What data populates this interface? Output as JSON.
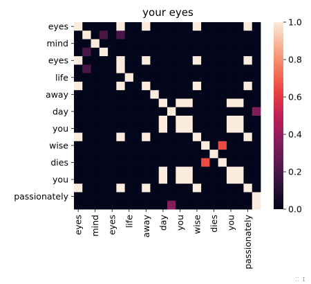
{
  "chart_data": {
    "type": "heatmap",
    "title": "your eyes",
    "xlabel": "",
    "ylabel": "",
    "row_labels": [
      "eyes",
      "",
      "mind",
      "",
      "eyes",
      "",
      "life",
      "",
      "away",
      "",
      "day",
      "",
      "you",
      "",
      "wise",
      "",
      "dies",
      "",
      "you",
      "",
      "passionately",
      ""
    ],
    "col_labels": [
      "eyes",
      "",
      "mind",
      "",
      "eyes",
      "",
      "life",
      "",
      "away",
      "",
      "day",
      "",
      "you",
      "",
      "wise",
      "",
      "dies",
      "",
      "you",
      "",
      "passionately",
      ""
    ],
    "values": [
      [
        1,
        0,
        0,
        0,
        0,
        1,
        0,
        0,
        1,
        0,
        0,
        0,
        0,
        0,
        1,
        0,
        0,
        0,
        0,
        0,
        1,
        0
      ],
      [
        0,
        1,
        0,
        0.2,
        0,
        0.2,
        0,
        0,
        0,
        0,
        0,
        0,
        0,
        0,
        0,
        0,
        0,
        0,
        0,
        0,
        0,
        0
      ],
      [
        0,
        0,
        1,
        0,
        0,
        0,
        0,
        0,
        0,
        0,
        0,
        0,
        0,
        0,
        0,
        0,
        0,
        0,
        0,
        0,
        0,
        0
      ],
      [
        0,
        0.2,
        0,
        1,
        0,
        0,
        0,
        0,
        0,
        0,
        0,
        0,
        0,
        0,
        0,
        0,
        0,
        0,
        0,
        0,
        0,
        0
      ],
      [
        1,
        0,
        0,
        0,
        0,
        1,
        0,
        0,
        1,
        0,
        0,
        0,
        0,
        0,
        1,
        0,
        0,
        0,
        0,
        0,
        1,
        0
      ],
      [
        0,
        0.2,
        0,
        0,
        0,
        1,
        0,
        0,
        0,
        0,
        0,
        0,
        0,
        0,
        0,
        0,
        0,
        0,
        0,
        0,
        0,
        0
      ],
      [
        0,
        0,
        0,
        0,
        0,
        0,
        1,
        0,
        0,
        0,
        0,
        0,
        0,
        0,
        0,
        0,
        0,
        0,
        0,
        0,
        0,
        0
      ],
      [
        1,
        0,
        0,
        0,
        0,
        1,
        0,
        0,
        1,
        0,
        0,
        0,
        0,
        0,
        1,
        0,
        0,
        0,
        0,
        0,
        1,
        0
      ],
      [
        0,
        0,
        0,
        0,
        0,
        0,
        0,
        0,
        0,
        1,
        0,
        0,
        0,
        0,
        0,
        0,
        0,
        0,
        0,
        0,
        0,
        0
      ],
      [
        0,
        0,
        0,
        0,
        0,
        0,
        0,
        0,
        0,
        0,
        1,
        0,
        1,
        1,
        0,
        0,
        0,
        0,
        1,
        1,
        0,
        0
      ],
      [
        0,
        0,
        0,
        0,
        0,
        0,
        0,
        0,
        0,
        0,
        0,
        1,
        0,
        0,
        0,
        0,
        0,
        0,
        0,
        0,
        0,
        0.35
      ],
      [
        0,
        0,
        0,
        0,
        0,
        0,
        0,
        0,
        0,
        0,
        1,
        0,
        1,
        1,
        0,
        0,
        0,
        0,
        1,
        1,
        0,
        0
      ],
      [
        0,
        0,
        0,
        0,
        0,
        0,
        0,
        0,
        0,
        0,
        1,
        0,
        1,
        1,
        0,
        0,
        0,
        0,
        1,
        1,
        0,
        0
      ],
      [
        1,
        0,
        0,
        0,
        0,
        1,
        0,
        0,
        1,
        0,
        0,
        0,
        0,
        0,
        1,
        0,
        0,
        0,
        0,
        0,
        1,
        0
      ],
      [
        0,
        0,
        0,
        0,
        0,
        0,
        0,
        0,
        0,
        0,
        0,
        0,
        0,
        0,
        0,
        1,
        0,
        0.65,
        0,
        0,
        0,
        0
      ],
      [
        0,
        0,
        0,
        0,
        0,
        0,
        0,
        0,
        0,
        0,
        0,
        0,
        0,
        0,
        0,
        0,
        1,
        0,
        0,
        0,
        0,
        0
      ],
      [
        0,
        0,
        0,
        0,
        0,
        0,
        0,
        0,
        0,
        0,
        0,
        0,
        0,
        0,
        0,
        0.65,
        0,
        1,
        0,
        0,
        0,
        0
      ],
      [
        0,
        0,
        0,
        0,
        0,
        0,
        0,
        0,
        0,
        0,
        1,
        0,
        1,
        1,
        0,
        0,
        0,
        0,
        1,
        1,
        0,
        0
      ],
      [
        0,
        0,
        0,
        0,
        0,
        0,
        0,
        0,
        0,
        0,
        1,
        0,
        1,
        1,
        0,
        0,
        0,
        0,
        1,
        1,
        0,
        0
      ],
      [
        1,
        0,
        0,
        0,
        0,
        1,
        0,
        0,
        1,
        0,
        0,
        0,
        0,
        0,
        1,
        0,
        0,
        0,
        0,
        0,
        1,
        0
      ],
      [
        0,
        0,
        0,
        0,
        0,
        0,
        0,
        0,
        0,
        0,
        0,
        0,
        0,
        0,
        0,
        0,
        0,
        0,
        0,
        0,
        0,
        1
      ],
      [
        0,
        0,
        0,
        0,
        0,
        0,
        0,
        0,
        0,
        0,
        0,
        0.35,
        0,
        0,
        0,
        0,
        0,
        0,
        0,
        0,
        0,
        1
      ]
    ],
    "vmin": 0,
    "vmax": 1,
    "colorbar_ticks": [
      "0.0",
      "0.2",
      "0.4",
      "0.6",
      "0.8",
      "1.0"
    ],
    "colormap": "rocket",
    "grid": false,
    "legend": "colorbar-right"
  }
}
